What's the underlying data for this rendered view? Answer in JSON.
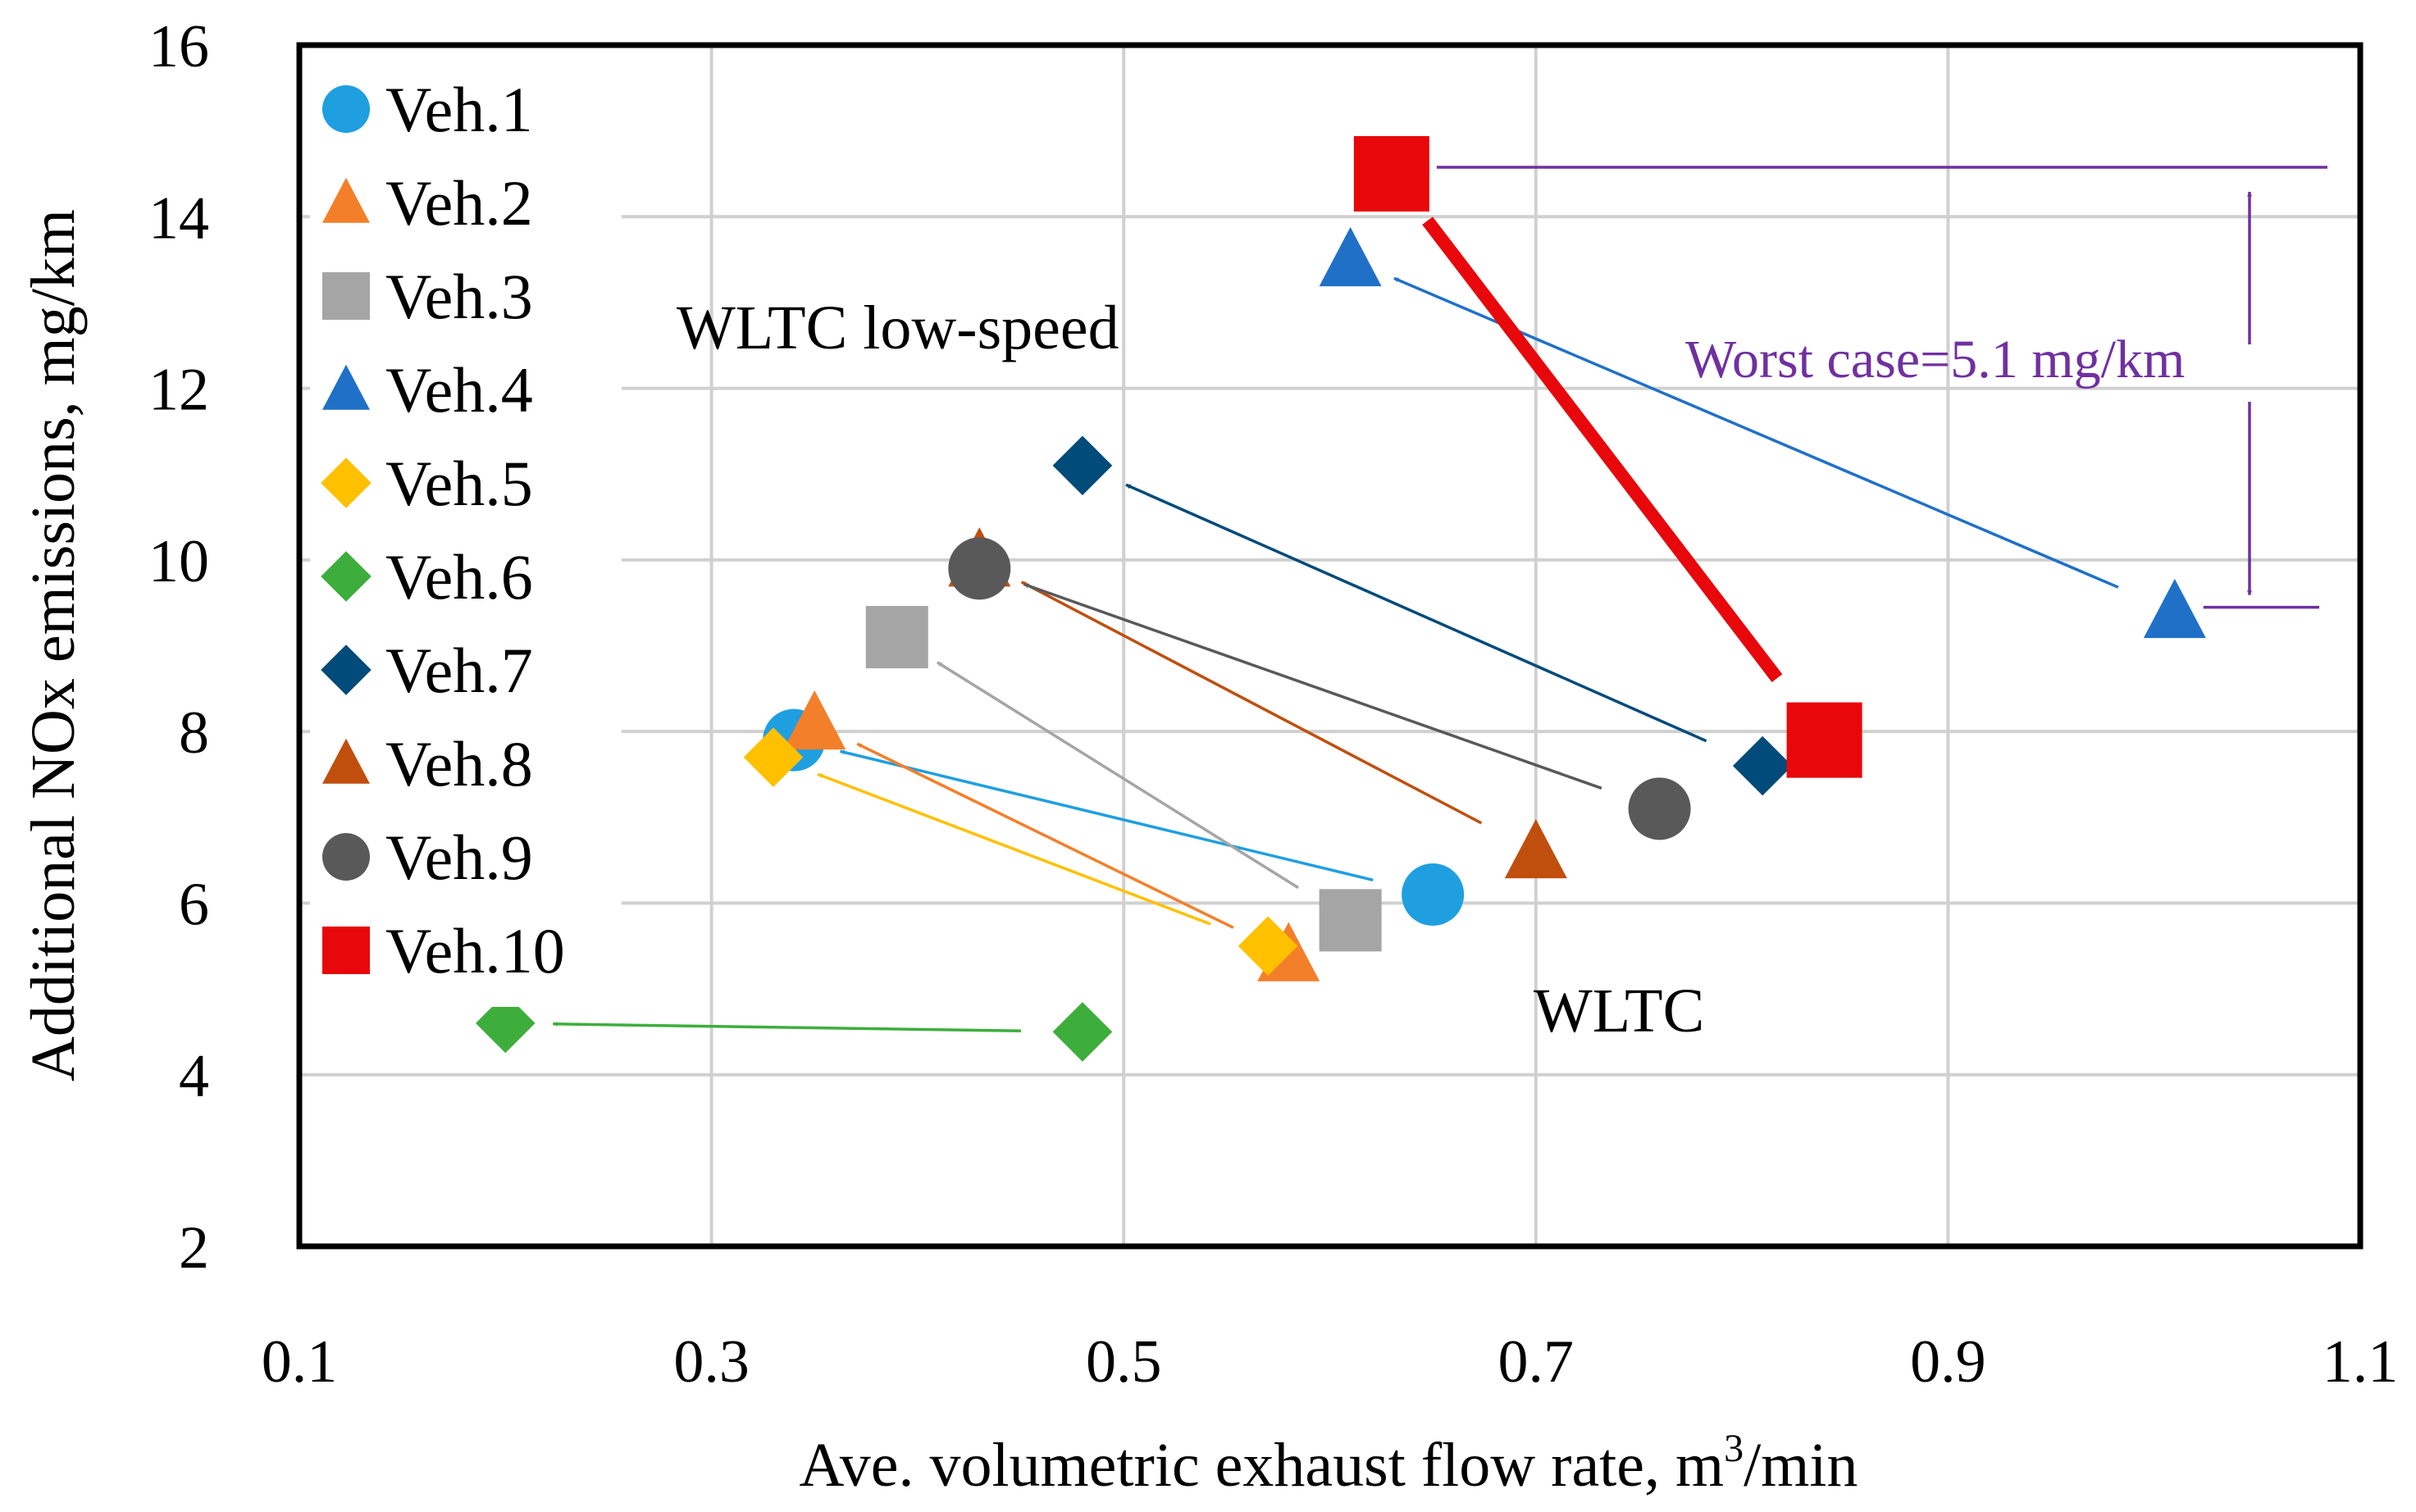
{
  "chart_data": {
    "type": "scatter",
    "xlabel": "Ave. volumetric exhaust flow rate, m",
    "xlabel_sup": "3",
    "xlabel_tail": "/min",
    "ylabel": "Additional NOx emissions, mg/km",
    "xlim": [
      0.1,
      1.1
    ],
    "ylim": [
      2,
      16
    ],
    "x_ticks": [
      0.1,
      0.3,
      0.5,
      0.7,
      0.9,
      1.1
    ],
    "x_tick_labels": [
      "0.1",
      "0.3",
      "0.5",
      "0.7",
      "0.9",
      "1.1"
    ],
    "y_ticks": [
      2,
      4,
      6,
      8,
      10,
      12,
      14,
      16
    ],
    "y_tick_labels": [
      "2",
      "4",
      "6",
      "8",
      "10",
      "12",
      "14",
      "16"
    ],
    "grid": true,
    "legend_position": "top-left",
    "conditions": [
      "WLTC",
      "WLTC low-speed"
    ],
    "series": [
      {
        "name": "Veh.1",
        "marker": "circle",
        "color": "#1f9fe0",
        "WLTC": [
          0.65,
          6.1
        ],
        "WLTC low-speed": [
          0.34,
          7.9
        ]
      },
      {
        "name": "Veh.2",
        "marker": "triangle",
        "color": "#f47f2a",
        "WLTC": [
          0.58,
          5.4
        ],
        "WLTC low-speed": [
          0.35,
          8.1
        ]
      },
      {
        "name": "Veh.3",
        "marker": "square",
        "color": "#a5a5a5",
        "WLTC": [
          0.61,
          5.8
        ],
        "WLTC low-speed": [
          0.39,
          9.1
        ]
      },
      {
        "name": "Veh.4",
        "marker": "triangle",
        "color": "#2070c8",
        "WLTC": [
          1.01,
          9.4
        ],
        "WLTC low-speed": [
          0.61,
          13.5
        ]
      },
      {
        "name": "Veh.5",
        "marker": "diamond",
        "color": "#ffc000",
        "WLTC": [
          0.57,
          5.5
        ],
        "WLTC low-speed": [
          0.33,
          7.7
        ]
      },
      {
        "name": "Veh.6",
        "marker": "diamond",
        "color": "#3dae3c",
        "WLTC": [
          0.48,
          4.5
        ],
        "WLTC low-speed": [
          0.2,
          4.6
        ]
      },
      {
        "name": "Veh.7",
        "marker": "diamond",
        "color": "#004b7a",
        "WLTC": [
          0.81,
          7.6
        ],
        "WLTC low-speed": [
          0.48,
          11.1
        ]
      },
      {
        "name": "Veh.8",
        "marker": "triangle",
        "color": "#c04f0e",
        "WLTC": [
          0.7,
          6.6
        ],
        "WLTC low-speed": [
          0.43,
          10.0
        ]
      },
      {
        "name": "Veh.9",
        "marker": "circle",
        "color": "#595959",
        "WLTC": [
          0.76,
          7.1
        ],
        "WLTC low-speed": [
          0.43,
          9.9
        ]
      },
      {
        "name": "Veh.10",
        "marker": "square",
        "color": "#e8070b",
        "WLTC": [
          0.84,
          7.9
        ],
        "WLTC low-speed": [
          0.63,
          14.5
        ]
      }
    ],
    "annotations": {
      "wltc_label": "WLTC",
      "low_speed_label": "WLTC low-speed",
      "worst_case_label": "Worst case=5.1 mg/km",
      "worst_case_color": "#7030a0",
      "worst_case_top": 14.5,
      "worst_case_bottom": 9.4
    }
  }
}
